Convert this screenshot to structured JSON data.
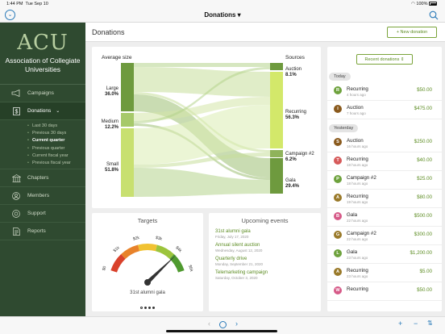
{
  "status": {
    "time": "1:44 PM",
    "date": "Tue Sep 10",
    "battery": "100%"
  },
  "nav": {
    "title": "Donations",
    "title_caret": "▾"
  },
  "org": {
    "mark": "ACU",
    "name": "Association of Collegiate Universities"
  },
  "sidebar": {
    "items": [
      {
        "label": "Campaigns",
        "icon": "megaphone-icon"
      },
      {
        "label": "Donations",
        "icon": "dollar-icon",
        "expanded": true
      },
      {
        "label": "Chapters",
        "icon": "building-icon"
      },
      {
        "label": "Members",
        "icon": "person-icon"
      },
      {
        "label": "Support",
        "icon": "lifebuoy-icon"
      },
      {
        "label": "Reports",
        "icon": "document-icon"
      }
    ],
    "subitems": [
      {
        "label": "Last 30 days",
        "current": false
      },
      {
        "label": "Previous 30 days",
        "current": false
      },
      {
        "label": "Current quarter",
        "current": true
      },
      {
        "label": "Previous quarter",
        "current": false
      },
      {
        "label": "Current fiscal year",
        "current": false
      },
      {
        "label": "Previous fiscal year",
        "current": false
      }
    ]
  },
  "main": {
    "title": "Donations",
    "new_button": "+ New donation"
  },
  "sankey": {
    "left_title": "Average size",
    "right_title": "Sources",
    "left_nodes": [
      {
        "name": "Large",
        "pct": "36.0%"
      },
      {
        "name": "Medium",
        "pct": "12.2%"
      },
      {
        "name": "Small",
        "pct": "51.8%"
      }
    ],
    "right_nodes": [
      {
        "name": "Auction",
        "pct": "8.1%"
      },
      {
        "name": "Recurring",
        "pct": "56.3%"
      },
      {
        "name": "Campaign #2",
        "pct": "6.2%"
      },
      {
        "name": "Gala",
        "pct": "29.4%"
      }
    ]
  },
  "targets": {
    "title": "Targets",
    "ticks": [
      "$0",
      "$1k",
      "$2k",
      "$3k",
      "$4k",
      "$5k"
    ],
    "caption": "31st alumni gala",
    "page_dots": 4,
    "active_dot": 0,
    "value_fraction": 0.82,
    "colors": {
      "segment1": "#d9412b",
      "segment2": "#e8822a",
      "segment3": "#f1c232",
      "segment4": "#9cc43c",
      "segment5": "#4f9a2f"
    }
  },
  "events": {
    "title": "Upcoming events",
    "items": [
      {
        "name": "31st alumni gala",
        "date": "Friday, July 17, 2020"
      },
      {
        "name": "Annual silent auction",
        "date": "Wednesday, August 12, 2020"
      },
      {
        "name": "Quarterly drive",
        "date": "Monday, September 21, 2020"
      },
      {
        "name": "Telemarketing campaign",
        "date": "Saturday, October 3, 2020"
      }
    ]
  },
  "recent": {
    "button": "Recent donations",
    "today_label": "Today",
    "yesterday_label": "Yesterday",
    "today": [
      {
        "initial": "R",
        "name": "Recurring",
        "time": "4 hours ago",
        "amount": "$50.00",
        "color": "#6ea23d"
      },
      {
        "initial": "I",
        "name": "Auction",
        "time": "7 hours ago",
        "amount": "$475.00",
        "color": "#8a5a1d"
      }
    ],
    "yesterday": [
      {
        "initial": "S",
        "name": "Auction",
        "time": "16 hours ago",
        "amount": "$250.00",
        "color": "#8a5a1d"
      },
      {
        "initial": "T",
        "name": "Recurring",
        "time": "18 hours ago",
        "amount": "$40.00",
        "color": "#d65a5a"
      },
      {
        "initial": "P",
        "name": "Campaign #2",
        "time": "18 hours ago",
        "amount": "$25.00",
        "color": "#6ea23d"
      },
      {
        "initial": "A",
        "name": "Recurring",
        "time": "19 hours ago",
        "amount": "$80.00",
        "color": "#9a7a2a"
      },
      {
        "initial": "B",
        "name": "Gala",
        "time": "22 hours ago",
        "amount": "$500.00",
        "color": "#d65a88"
      },
      {
        "initial": "G",
        "name": "Campaign #2",
        "time": "22 hours ago",
        "amount": "$300.00",
        "color": "#9a7a2a"
      },
      {
        "initial": "L",
        "name": "Gala",
        "time": "23 hours ago",
        "amount": "$1,200.00",
        "color": "#6ea23d"
      },
      {
        "initial": "A",
        "name": "Recurring",
        "time": "23 hours ago",
        "amount": "$5.00",
        "color": "#9a7a2a"
      },
      {
        "initial": "W",
        "name": "Recurring",
        "time": "",
        "amount": "$50.00",
        "color": "#d65a88"
      }
    ]
  }
}
